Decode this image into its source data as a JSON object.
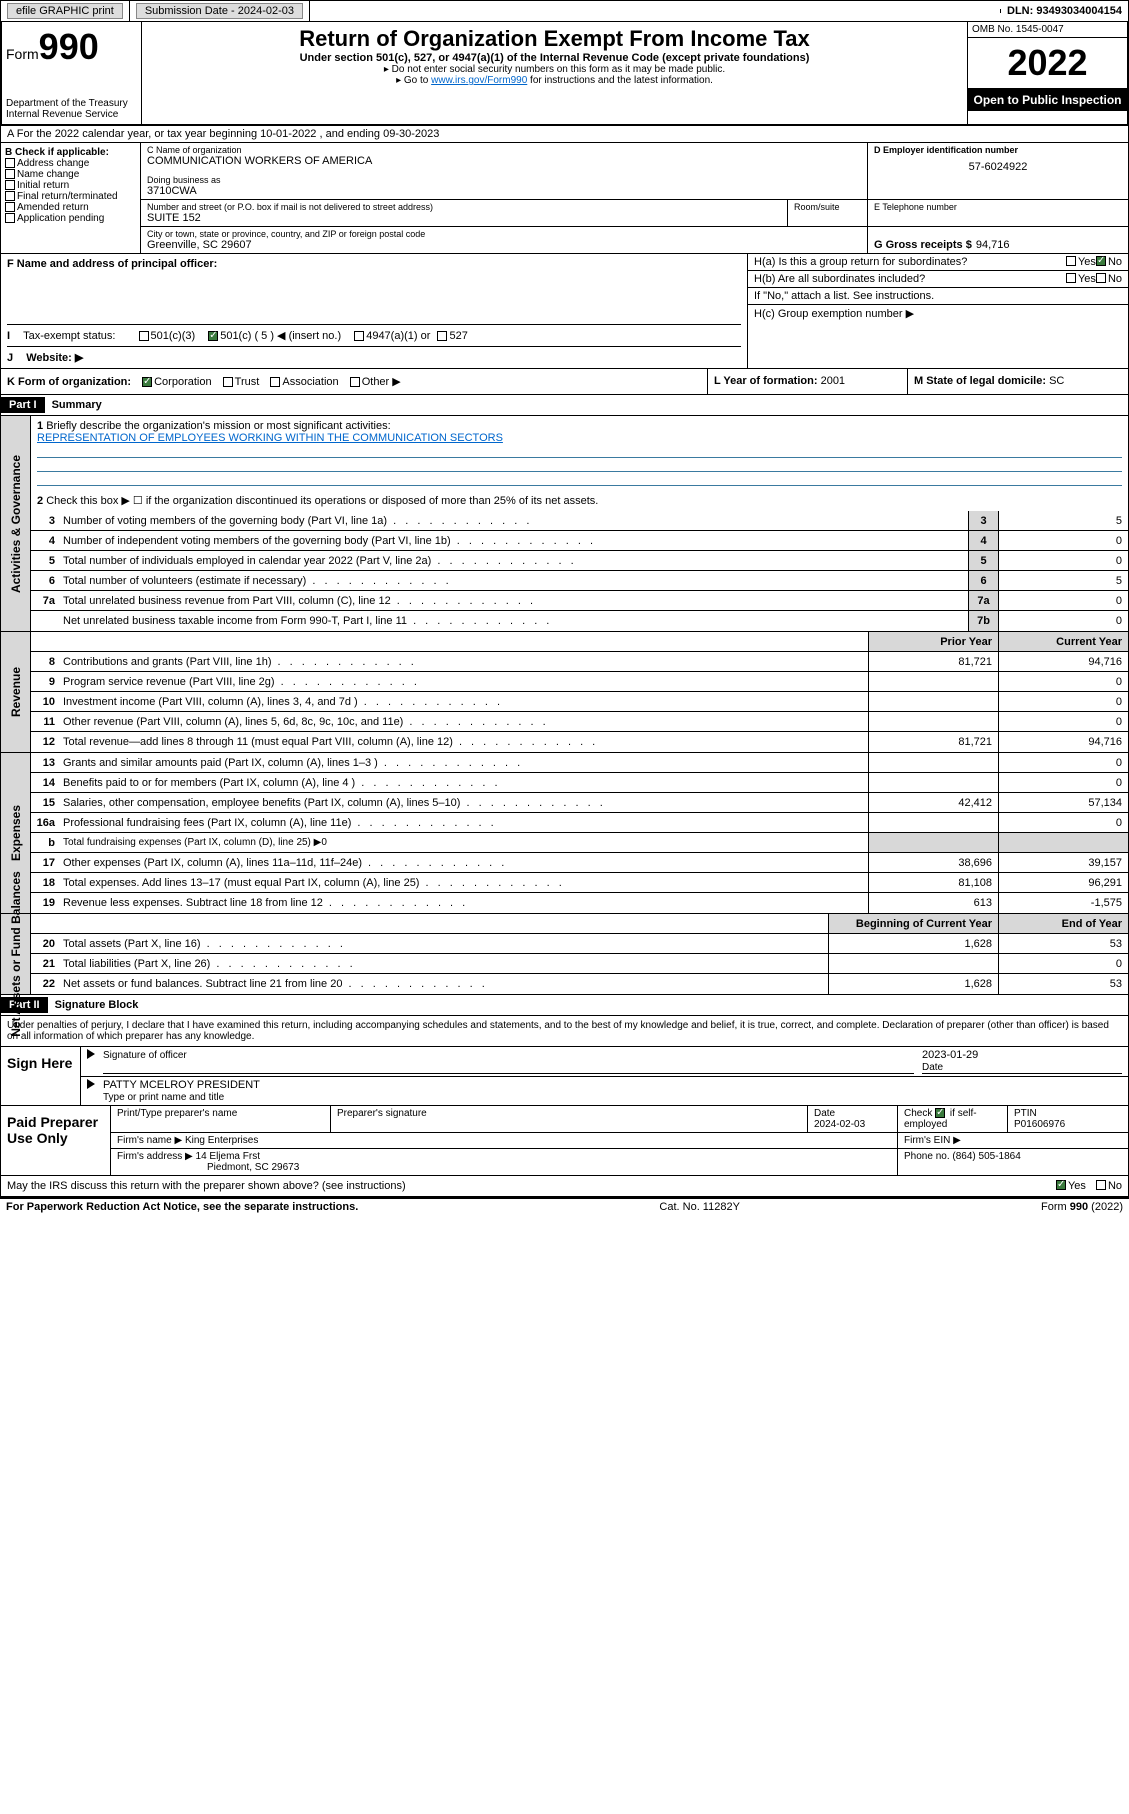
{
  "topbar": {
    "efile": "efile GRAPHIC print",
    "submission_label": "Submission Date - 2024-02-03",
    "dln": "DLN: 93493034004154"
  },
  "header": {
    "form_label": "Form",
    "form_number": "990",
    "dept": "Department of the Treasury",
    "irs": "Internal Revenue Service",
    "title": "Return of Organization Exempt From Income Tax",
    "sub1": "Under section 501(c), 527, or 4947(a)(1) of the Internal Revenue Code (except private foundations)",
    "sub2": "Do not enter social security numbers on this form as it may be made public.",
    "sub3_a": "Go to ",
    "sub3_link": "www.irs.gov/Form990",
    "sub3_b": " for instructions and the latest information.",
    "omb": "OMB No. 1545-0047",
    "year": "2022",
    "open": "Open to Public Inspection"
  },
  "a": "A For the 2022 calendar year, or tax year beginning 10-01-2022   , and ending 09-30-2023",
  "b": {
    "label": "B Check if applicable:",
    "opts": [
      "Address change",
      "Name change",
      "Initial return",
      "Final return/terminated",
      "Amended return",
      "Application pending"
    ]
  },
  "c": {
    "name_lbl": "C Name of organization",
    "name": "COMMUNICATION WORKERS OF AMERICA",
    "dba_lbl": "Doing business as",
    "dba": "3710CWA",
    "addr_lbl": "Number and street (or P.O. box if mail is not delivered to street address)",
    "room_lbl": "Room/suite",
    "addr": "SUITE 152",
    "city_lbl": "City or town, state or province, country, and ZIP or foreign postal code",
    "city": "Greenville, SC  29607"
  },
  "d": {
    "lbl": "D Employer identification number",
    "val": "57-6024922"
  },
  "e": {
    "lbl": "E Telephone number",
    "val": ""
  },
  "g": {
    "lbl": "G Gross receipts $",
    "val": "94,716"
  },
  "f": "F  Name and address of principal officer:",
  "h": {
    "a": "H(a)  Is this a group return for subordinates?",
    "b": "H(b)  Are all subordinates included?",
    "b2": "If \"No,\" attach a list. See instructions.",
    "c": "H(c)  Group exemption number ▶",
    "yes": "Yes",
    "no": "No"
  },
  "i": {
    "lbl": "Tax-exempt status:",
    "opts": [
      "501(c)(3)",
      "501(c) ( 5 ) ◀ (insert no.)",
      "4947(a)(1) or",
      "527"
    ]
  },
  "j": "Website: ▶",
  "k": {
    "lbl": "K Form of organization:",
    "opts": [
      "Corporation",
      "Trust",
      "Association",
      "Other ▶"
    ]
  },
  "l": {
    "lbl": "L Year of formation:",
    "val": "2001"
  },
  "m": {
    "lbl": "M State of legal domicile:",
    "val": "SC"
  },
  "part1": {
    "hdr": "Part I",
    "title": "Summary",
    "l1": "Briefly describe the organization's mission or most significant activities:",
    "mission": "REPRESENTATION OF EMPLOYEES WORKING WITHIN THE COMMUNICATION SECTORS",
    "l2": "Check this box ▶ ☐  if the organization discontinued its operations or disposed of more than 25% of its net assets.",
    "lines_gov": [
      {
        "n": "3",
        "t": "Number of voting members of the governing body (Part VI, line 1a)",
        "box": "3",
        "v": "5"
      },
      {
        "n": "4",
        "t": "Number of independent voting members of the governing body (Part VI, line 1b)",
        "box": "4",
        "v": "0"
      },
      {
        "n": "5",
        "t": "Total number of individuals employed in calendar year 2022 (Part V, line 2a)",
        "box": "5",
        "v": "0"
      },
      {
        "n": "6",
        "t": "Total number of volunteers (estimate if necessary)",
        "box": "6",
        "v": "5"
      },
      {
        "n": "7a",
        "t": "Total unrelated business revenue from Part VIII, column (C), line 12",
        "box": "7a",
        "v": "0"
      },
      {
        "n": "",
        "t": "Net unrelated business taxable income from Form 990-T, Part I, line 11",
        "box": "7b",
        "v": "0"
      }
    ],
    "col_prior": "Prior Year",
    "col_current": "Current Year",
    "lines_rev": [
      {
        "n": "8",
        "t": "Contributions and grants (Part VIII, line 1h)",
        "p": "81,721",
        "c": "94,716"
      },
      {
        "n": "9",
        "t": "Program service revenue (Part VIII, line 2g)",
        "p": "",
        "c": "0"
      },
      {
        "n": "10",
        "t": "Investment income (Part VIII, column (A), lines 3, 4, and 7d )",
        "p": "",
        "c": "0"
      },
      {
        "n": "11",
        "t": "Other revenue (Part VIII, column (A), lines 5, 6d, 8c, 9c, 10c, and 11e)",
        "p": "",
        "c": "0"
      },
      {
        "n": "12",
        "t": "Total revenue—add lines 8 through 11 (must equal Part VIII, column (A), line 12)",
        "p": "81,721",
        "c": "94,716"
      }
    ],
    "lines_exp": [
      {
        "n": "13",
        "t": "Grants and similar amounts paid (Part IX, column (A), lines 1–3 )",
        "p": "",
        "c": "0"
      },
      {
        "n": "14",
        "t": "Benefits paid to or for members (Part IX, column (A), line 4 )",
        "p": "",
        "c": "0"
      },
      {
        "n": "15",
        "t": "Salaries, other compensation, employee benefits (Part IX, column (A), lines 5–10)",
        "p": "42,412",
        "c": "57,134"
      },
      {
        "n": "16a",
        "t": "Professional fundraising fees (Part IX, column (A), line 11e)",
        "p": "",
        "c": "0"
      },
      {
        "n": "b",
        "t": "Total fundraising expenses (Part IX, column (D), line 25) ▶0",
        "p": "—",
        "c": "—"
      },
      {
        "n": "17",
        "t": "Other expenses (Part IX, column (A), lines 11a–11d, 11f–24e)",
        "p": "38,696",
        "c": "39,157"
      },
      {
        "n": "18",
        "t": "Total expenses. Add lines 13–17 (must equal Part IX, column (A), line 25)",
        "p": "81,108",
        "c": "96,291"
      },
      {
        "n": "19",
        "t": "Revenue less expenses. Subtract line 18 from line 12",
        "p": "613",
        "c": "-1,575"
      }
    ],
    "col_begin": "Beginning of Current Year",
    "col_end": "End of Year",
    "lines_net": [
      {
        "n": "20",
        "t": "Total assets (Part X, line 16)",
        "p": "1,628",
        "c": "53"
      },
      {
        "n": "21",
        "t": "Total liabilities (Part X, line 26)",
        "p": "",
        "c": "0"
      },
      {
        "n": "22",
        "t": "Net assets or fund balances. Subtract line 21 from line 20",
        "p": "1,628",
        "c": "53"
      }
    ]
  },
  "side_labels": {
    "gov": "Activities & Governance",
    "rev": "Revenue",
    "exp": "Expenses",
    "net": "Net Assets or Fund Balances"
  },
  "part2": {
    "hdr": "Part II",
    "title": "Signature Block",
    "intro": "Under penalties of perjury, I declare that I have examined this return, including accompanying schedules and statements, and to the best of my knowledge and belief, it is true, correct, and complete. Declaration of preparer (other than officer) is based on all information of which preparer has any knowledge.",
    "sign_here": "Sign Here",
    "sig_officer": "Signature of officer",
    "date_lbl": "Date",
    "date_val": "2023-01-29",
    "officer_name": "PATTY MCELROY PRESIDENT",
    "type_name": "Type or print name and title",
    "paid": "Paid Preparer Use Only",
    "prep_name_lbl": "Print/Type preparer's name",
    "prep_sig_lbl": "Preparer's signature",
    "prep_date_lbl": "Date",
    "prep_date": "2024-02-03",
    "check_lbl": "Check",
    "self_emp": "if self-employed",
    "ptin_lbl": "PTIN",
    "ptin": "P01606976",
    "firm_name_lbl": "Firm's name   ▶",
    "firm_name": "King Enterprises",
    "firm_ein_lbl": "Firm's EIN ▶",
    "firm_addr_lbl": "Firm's address ▶",
    "firm_addr1": "14 Eljema Frst",
    "firm_addr2": "Piedmont, SC  29673",
    "phone_lbl": "Phone no.",
    "phone": "(864) 505-1864",
    "discuss": "May the IRS discuss this return with the preparer shown above? (see instructions)"
  },
  "footer": {
    "left": "For Paperwork Reduction Act Notice, see the separate instructions.",
    "mid": "Cat. No. 11282Y",
    "right_a": "Form ",
    "right_b": "990",
    "right_c": " (2022)"
  }
}
